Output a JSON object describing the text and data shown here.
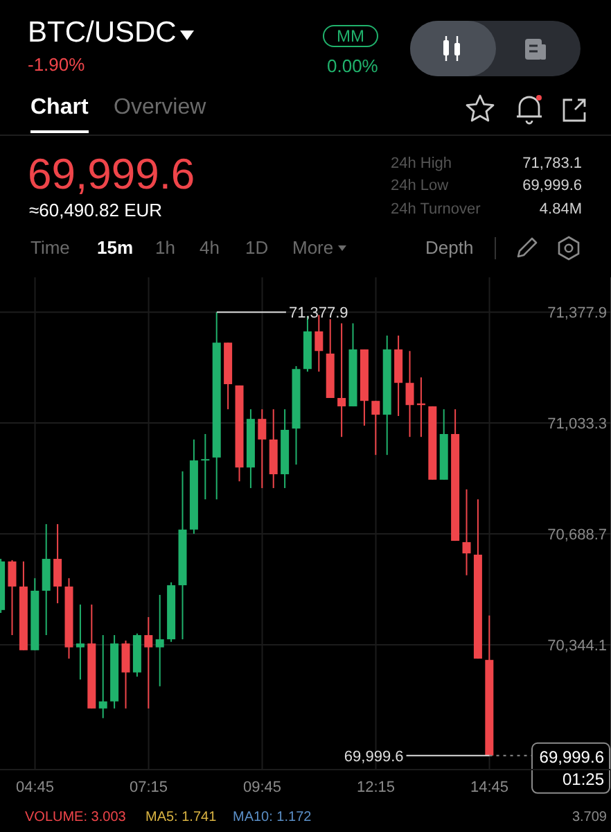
{
  "chart_data": {
    "type": "candlestick",
    "title": "BTC/USDC",
    "subtitle": "-1.90%",
    "x": [
      4,
      4.25,
      4.5,
      4.75,
      5,
      5.25,
      5.5,
      5.75,
      6,
      6.25,
      6.5,
      6.75,
      7,
      7.25,
      7.5,
      7.75,
      8,
      8.25,
      8.5,
      8.75,
      9,
      9.25,
      9.5,
      9.75,
      10,
      10.25,
      10.5,
      10.75,
      11,
      11.25,
      11.5,
      11.75,
      12,
      12.25,
      12.5,
      12.75,
      13,
      13.25,
      13.5,
      13.75,
      14,
      14.25,
      14.5,
      14.75
    ],
    "ohlc": [
      [
        70452,
        70611,
        70443,
        70603
      ],
      [
        70603,
        70607,
        70374,
        70525
      ],
      [
        70525,
        70603,
        70327,
        70327
      ],
      [
        70327,
        70551,
        70327,
        70512
      ],
      [
        70512,
        70719,
        70374,
        70611
      ],
      [
        70611,
        70719,
        70473,
        70525
      ],
      [
        70525,
        70551,
        70301,
        70336
      ],
      [
        70336,
        70469,
        70236,
        70348
      ],
      [
        70348,
        70469,
        70146,
        70146
      ],
      [
        70146,
        70374,
        70116,
        70168
      ],
      [
        70168,
        70374,
        70146,
        70348
      ],
      [
        70348,
        70357,
        70146,
        70258
      ],
      [
        70258,
        70379,
        70245,
        70374
      ],
      [
        70374,
        70430,
        70146,
        70336
      ],
      [
        70336,
        70499,
        70215,
        70361
      ],
      [
        70361,
        70538,
        70353,
        70529
      ],
      [
        70529,
        70883,
        70361,
        70702
      ],
      [
        70702,
        70982,
        70689,
        70917
      ],
      [
        70917,
        70999,
        70796,
        70921
      ],
      [
        70926,
        71377.9,
        70796,
        71283
      ],
      [
        71283,
        71283,
        71076,
        71154
      ],
      [
        71150,
        71150,
        70852,
        70895
      ],
      [
        70895,
        71076,
        70831,
        71046
      ],
      [
        71046,
        71076,
        70831,
        70982
      ],
      [
        70982,
        71076,
        70831,
        70874
      ],
      [
        70874,
        71076,
        70831,
        71012
      ],
      [
        71016,
        71210,
        70904,
        71201
      ],
      [
        71201,
        71365,
        71193,
        71318
      ],
      [
        71318,
        71369,
        71193,
        71257
      ],
      [
        71249,
        71356,
        71111,
        71111
      ],
      [
        71111,
        71343,
        70990,
        71085
      ],
      [
        71085,
        71343,
        71085,
        71262
      ],
      [
        71262,
        71262,
        71025,
        71102
      ],
      [
        71102,
        71102,
        70934,
        71059
      ],
      [
        71059,
        71305,
        70934,
        71262
      ],
      [
        71262,
        71305,
        71055,
        71158
      ],
      [
        71158,
        71257,
        70990,
        71089
      ],
      [
        71094,
        71175,
        70990,
        71089
      ],
      [
        71085,
        71085,
        70857,
        70857
      ],
      [
        70857,
        71076,
        70857,
        70999
      ],
      [
        70999,
        71076,
        70667,
        70667
      ],
      [
        70663,
        70827,
        70560,
        70628
      ],
      [
        70624,
        70796,
        70301,
        70301
      ],
      [
        70297,
        70435,
        69999.6,
        69999.6
      ]
    ],
    "colors": [
      "#20b26c",
      "#ef454a",
      "#ef454a",
      "#20b26c",
      "#20b26c",
      "#ef454a",
      "#ef454a",
      "#20b26c",
      "#ef454a",
      "#20b26c",
      "#20b26c",
      "#ef454a",
      "#20b26c",
      "#ef454a",
      "#20b26c",
      "#20b26c",
      "#20b26c",
      "#20b26c",
      "#20b26c",
      "#20b26c",
      "#ef454a",
      "#ef454a",
      "#20b26c",
      "#ef454a",
      "#ef454a",
      "#20b26c",
      "#20b26c",
      "#20b26c",
      "#ef454a",
      "#ef454a",
      "#ef454a",
      "#20b26c",
      "#ef454a",
      "#ef454a",
      "#20b26c",
      "#ef454a",
      "#ef454a",
      "#ef454a",
      "#ef454a",
      "#20b26c",
      "#ef454a",
      "#ef454a",
      "#ef454a",
      "#ef454a"
    ],
    "xlim": [
      3.98,
      17.425
    ],
    "xticks": [
      {
        "value": 4.75,
        "label": "04:45"
      },
      {
        "value": 7.25,
        "label": "07:15"
      },
      {
        "value": 9.75,
        "label": "09:45"
      },
      {
        "value": 12.25,
        "label": "12:15"
      },
      {
        "value": 14.75,
        "label": "14:45"
      }
    ],
    "ylim": [
      69956,
      71486
    ],
    "yticks": [
      {
        "value": 70344.1,
        "label": "70,344.1"
      },
      {
        "value": 70688.7,
        "label": "70,688.7"
      },
      {
        "value": 71033.3,
        "label": "71,033.3"
      },
      {
        "value": 71377.9,
        "label": "71,377.9"
      }
    ],
    "grid": true,
    "ref_lines": [
      {
        "axis": "y",
        "value": 69999.6,
        "label": "69,999.6",
        "line_style": "dotted",
        "color": "#8a8a8a"
      }
    ],
    "annotations": [
      "MM",
      "0.00%",
      "Chart",
      "Overview",
      "69,999.6",
      "≈60,490.82 EUR",
      "24h High",
      "71,783.1",
      "24h Low",
      "69,999.6",
      "24h Turnover",
      "4.84M",
      "Time",
      "15m",
      "1h",
      "4h",
      "1D",
      "More",
      "Depth",
      "01:25",
      "VOLUME: 3.003",
      "MA5: 1.741",
      "MA10: 1.172",
      "3.709",
      {
        "text": "71,377.9",
        "x": 8.75,
        "y": 71377.9
      },
      {
        "text": "69,999.6",
        "x": 14.75,
        "y": 69999.6
      }
    ]
  }
}
